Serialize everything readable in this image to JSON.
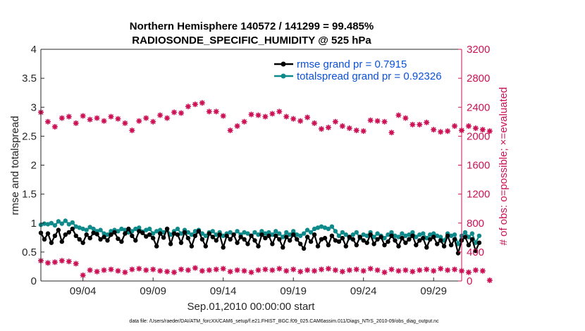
{
  "chart_data": {
    "type": "line",
    "title_line1": "Northern Hemisphere 140572 / 141299 = 99.485%",
    "title_line2": "RADIOSONDE_SPECIFIC_HUMIDITY @ 525 hPa",
    "xlabel": "Sep.01,2010 00:00:00 start",
    "ylabel_left": "rmse and totalspread",
    "ylabel_right": "# of obs: o=possible; ×=evaluated",
    "ylim_left": [
      0,
      4
    ],
    "ylim_right": [
      0,
      3200
    ],
    "yticks_left": [
      "0",
      "0.5",
      "1",
      "1.5",
      "2",
      "2.5",
      "3",
      "3.5",
      "4"
    ],
    "yticks_right": [
      "0",
      "400",
      "800",
      "1200",
      "1600",
      "2000",
      "2400",
      "2800",
      "3200"
    ],
    "xlim_days": [
      1,
      31
    ],
    "xticks": [
      {
        "day": 4,
        "label": "09/04"
      },
      {
        "day": 9,
        "label": "09/09"
      },
      {
        "day": 14,
        "label": "09/14"
      },
      {
        "day": 19,
        "label": "09/19"
      },
      {
        "day": 24,
        "label": "09/24"
      },
      {
        "day": 29,
        "label": "09/29"
      }
    ],
    "footnote": "data file: /Users/raeder/DAI/ATM_forcXX/CAM6_setup/f.e21.FHIST_BGC.f09_025.CAM6assim.011/Diags_NTrS_2010-09/obs_diag_output.nc",
    "colors": {
      "rmse": "#000000",
      "spread": "#0f8a8a",
      "obs": "#cc1155",
      "legend_text": "#0b50d8"
    },
    "series": [
      {
        "name": "rmse grand pr = 0.7915",
        "axis": "left",
        "start_day": 1.0,
        "step_days": 0.25,
        "values": [
          0.83,
          0.72,
          0.82,
          0.66,
          0.78,
          0.88,
          0.68,
          0.8,
          0.84,
          0.9,
          0.78,
          0.72,
          0.66,
          0.8,
          0.74,
          0.83,
          0.81,
          0.72,
          0.76,
          0.7,
          0.8,
          0.84,
          0.73,
          0.68,
          0.82,
          0.9,
          0.78,
          0.7,
          0.86,
          0.83,
          0.77,
          0.8,
          0.74,
          0.6,
          0.82,
          0.75,
          0.9,
          0.64,
          0.82,
          0.8,
          0.66,
          0.84,
          0.74,
          0.6,
          0.78,
          0.86,
          0.72,
          0.6,
          0.82,
          0.76,
          0.7,
          0.8,
          0.58,
          0.78,
          0.72,
          0.8,
          0.66,
          0.76,
          0.72,
          0.64,
          0.78,
          0.7,
          0.6,
          0.8,
          0.74,
          0.78,
          0.64,
          0.78,
          0.72,
          0.58,
          0.76,
          0.7,
          0.8,
          0.72,
          0.64,
          0.56,
          0.76,
          0.68,
          0.8,
          0.6,
          0.72,
          0.74,
          0.62,
          0.78,
          0.7,
          0.68,
          0.74,
          0.6,
          0.76,
          0.72,
          0.62,
          0.76,
          0.7,
          0.66,
          0.8,
          0.64,
          0.72,
          0.76,
          0.62,
          0.68,
          0.78,
          0.7,
          0.6,
          0.74,
          0.66,
          0.72,
          0.78,
          0.62,
          0.7,
          0.74,
          0.58,
          0.72,
          0.76,
          0.64,
          0.7,
          0.6,
          0.78,
          0.62,
          0.72,
          0.48,
          0.7,
          0.76,
          0.62,
          0.72,
          0.52,
          0.66
        ]
      },
      {
        "name": "totalspread grand pr = 0.92326",
        "axis": "left",
        "start_day": 1.0,
        "step_days": 0.25,
        "values": [
          0.97,
          0.99,
          0.98,
          1.0,
          0.96,
          1.03,
          0.99,
          1.04,
          0.98,
          1.01,
          0.94,
          0.92,
          0.9,
          0.88,
          0.93,
          0.9,
          0.86,
          0.88,
          0.82,
          0.8,
          0.86,
          0.88,
          0.86,
          0.9,
          0.88,
          0.84,
          0.86,
          0.9,
          0.92,
          0.85,
          0.88,
          0.9,
          0.82,
          0.86,
          0.88,
          0.84,
          0.9,
          0.8,
          0.86,
          0.9,
          0.82,
          0.88,
          0.84,
          0.8,
          0.86,
          0.88,
          0.82,
          0.78,
          0.84,
          0.86,
          0.8,
          0.84,
          0.78,
          0.82,
          0.84,
          0.8,
          0.86,
          0.8,
          0.84,
          0.82,
          0.78,
          0.84,
          0.8,
          0.86,
          0.82,
          0.84,
          0.8,
          0.86,
          0.82,
          0.76,
          0.84,
          0.8,
          0.86,
          0.8,
          0.78,
          0.82,
          0.88,
          0.84,
          0.9,
          0.92,
          0.94,
          0.92,
          0.9,
          0.94,
          0.86,
          0.78,
          0.84,
          0.8,
          0.74,
          0.8,
          0.84,
          0.74,
          0.8,
          0.78,
          0.84,
          0.76,
          0.82,
          0.78,
          0.74,
          0.8,
          0.84,
          0.78,
          0.76,
          0.82,
          0.78,
          0.8,
          0.84,
          0.76,
          0.8,
          0.82,
          0.74,
          0.8,
          0.82,
          0.78,
          0.76,
          0.7,
          0.82,
          0.78,
          0.8,
          0.64,
          0.78,
          0.84,
          0.76,
          0.82,
          0.66,
          0.78
        ]
      },
      {
        "name": "# obs evaluated (upper)",
        "axis": "right",
        "start_day": 1.0,
        "step_days": 0.5,
        "values": [
          2330,
          2200,
          2130,
          2250,
          2270,
          2180,
          2280,
          2230,
          2250,
          2210,
          2270,
          2240,
          2180,
          2080,
          2210,
          2250,
          2200,
          2290,
          2250,
          2330,
          2320,
          2410,
          2440,
          2460,
          2340,
          2340,
          2280,
          2080,
          2140,
          2200,
          2300,
          2290,
          2270,
          2310,
          2340,
          2270,
          2240,
          2210,
          2260,
          2180,
          2100,
          2120,
          2200,
          2140,
          2110,
          2080,
          2070,
          2220,
          2210,
          2200,
          2050,
          2290,
          2250,
          2160,
          2160,
          2190,
          2090,
          2060,
          2070,
          2140,
          2080,
          2140,
          2110,
          2090,
          2070
        ]
      },
      {
        "name": "# obs evaluated (lower)",
        "axis": "right",
        "start_day": 1.0,
        "step_days": 0.5,
        "values": [
          280,
          250,
          260,
          280,
          270,
          240,
          80,
          150,
          130,
          150,
          160,
          140,
          120,
          160,
          170,
          150,
          160,
          140,
          130,
          120,
          160,
          150,
          180,
          140,
          150,
          160,
          170,
          130,
          150,
          140,
          120,
          150,
          160,
          150,
          170,
          140,
          160,
          130,
          150,
          140,
          160,
          170,
          150,
          130,
          150,
          160,
          140,
          170,
          150,
          120,
          160,
          140,
          150,
          130,
          150,
          160,
          140,
          170,
          150,
          160,
          140,
          120,
          150,
          140,
          10
        ]
      }
    ]
  }
}
